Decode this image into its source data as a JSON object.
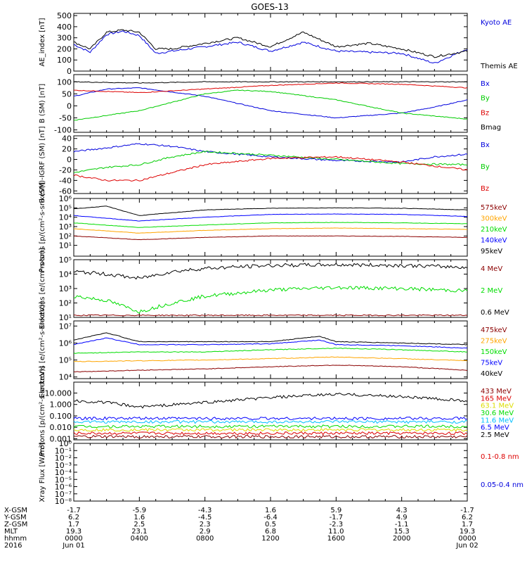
{
  "title": "GOES-13",
  "colors": {
    "black": "#000000",
    "blue": "#0000dd",
    "red": "#dd0000",
    "green": "#00dd00",
    "darkred": "#8b0000",
    "orange": "#ffa500",
    "navy": "#0000ff",
    "cyan": "#00bfff",
    "yellow": "#dddd00",
    "purple": "#8800cc"
  },
  "chart_data": [
    {
      "type": "line",
      "id": "ae",
      "ylabel": "AE_index [nT]",
      "ylim": [
        0,
        520
      ],
      "yticks": [
        "0",
        "100",
        "200",
        "300",
        "400",
        "500"
      ],
      "series": [
        {
          "name": "Kyoto AE",
          "color": "#0000dd",
          "x": [
            0,
            1,
            2,
            3,
            4,
            5,
            6,
            8,
            10,
            12,
            14,
            16,
            18,
            20,
            22,
            24
          ],
          "values": [
            240,
            170,
            330,
            360,
            320,
            160,
            180,
            220,
            260,
            180,
            260,
            180,
            170,
            160,
            70,
            200
          ]
        },
        {
          "name": "Themis AE",
          "color": "#000000",
          "x": [
            0,
            1,
            2,
            3,
            4,
            5,
            6,
            8,
            10,
            12,
            14,
            16,
            18,
            20,
            22,
            24
          ],
          "values": [
            260,
            200,
            350,
            370,
            350,
            200,
            200,
            250,
            300,
            220,
            350,
            220,
            250,
            200,
            130,
            180
          ]
        }
      ]
    },
    {
      "type": "line",
      "id": "b",
      "ylabel": "B (SM) [nT]",
      "ylim": [
        -110,
        130
      ],
      "yticks": [
        "-100",
        "-50",
        "0",
        "50",
        "100"
      ],
      "series": [
        {
          "name": "Bx",
          "color": "#0000dd",
          "x": [
            0,
            2,
            4,
            8,
            12,
            16,
            20,
            22,
            24
          ],
          "values": [
            40,
            70,
            75,
            40,
            -20,
            -50,
            -30,
            -5,
            25
          ]
        },
        {
          "name": "By",
          "color": "#00cc00",
          "x": [
            0,
            4,
            8,
            10,
            12,
            16,
            20,
            24
          ],
          "values": [
            -60,
            -20,
            50,
            65,
            60,
            25,
            -30,
            -55
          ]
        },
        {
          "name": "Bz",
          "color": "#dd0000",
          "x": [
            0,
            4,
            8,
            12,
            16,
            20,
            24
          ],
          "values": [
            65,
            55,
            70,
            85,
            95,
            90,
            75
          ]
        },
        {
          "name": "Bmag",
          "color": "#000000",
          "x": [
            0,
            4,
            8,
            12,
            16,
            20,
            24
          ],
          "values": [
            100,
            95,
            100,
            100,
            100,
            100,
            100
          ]
        }
      ]
    },
    {
      "type": "line",
      "id": "bd",
      "ylabel": "B (SM)-IGRF (SM) [nT]",
      "ylim": [
        -65,
        45
      ],
      "yticks": [
        "-60",
        "-40",
        "-20",
        "0",
        "20",
        "40"
      ],
      "series": [
        {
          "name": "Bx",
          "color": "#0000dd",
          "x": [
            0,
            2,
            4,
            6,
            8,
            12,
            16,
            20,
            22,
            24
          ],
          "values": [
            15,
            22,
            30,
            25,
            15,
            5,
            -2,
            -5,
            5,
            10
          ]
        },
        {
          "name": "By",
          "color": "#00cc00",
          "x": [
            0,
            2,
            4,
            6,
            8,
            12,
            16,
            20,
            24
          ],
          "values": [
            -25,
            -15,
            -10,
            5,
            15,
            8,
            0,
            -8,
            -10
          ]
        },
        {
          "name": "Bz",
          "color": "#dd0000",
          "x": [
            0,
            2,
            4,
            6,
            8,
            12,
            16,
            20,
            24
          ],
          "values": [
            -30,
            -40,
            -40,
            -25,
            -10,
            2,
            5,
            -5,
            -20
          ]
        }
      ]
    },
    {
      "type": "line",
      "id": "p1",
      "ylabel": "Protons [p/(cm²-s-sr-keV)]",
      "log": true,
      "ylim": [
        0.7,
        1000000
      ],
      "yticks": [
        "10¹",
        "10²",
        "10³",
        "10⁴",
        "10⁵",
        "10⁶"
      ],
      "series": [
        {
          "name": "575keV",
          "color": "#8b0000",
          "x": [
            0,
            4,
            8,
            12,
            16,
            20,
            24
          ],
          "values": [
            100,
            40,
            70,
            100,
            100,
            90,
            70
          ]
        },
        {
          "name": "300keV",
          "color": "#ffa500",
          "x": [
            0,
            4,
            8,
            12,
            16,
            20,
            24
          ],
          "values": [
            600,
            200,
            400,
            600,
            700,
            600,
            500
          ]
        },
        {
          "name": "210keV",
          "color": "#00dd00",
          "x": [
            0,
            4,
            8,
            12,
            16,
            20,
            24
          ],
          "values": [
            2500,
            800,
            1500,
            2500,
            2800,
            2500,
            2000
          ]
        },
        {
          "name": "140keV",
          "color": "#0000ff",
          "x": [
            0,
            4,
            8,
            12,
            16,
            20,
            24
          ],
          "values": [
            15000,
            4000,
            10000,
            20000,
            22000,
            20000,
            12000
          ]
        },
        {
          "name": "95keV",
          "color": "#000000",
          "x": [
            0,
            2,
            4,
            8,
            12,
            16,
            20,
            24
          ],
          "values": [
            80000,
            150000,
            15000,
            60000,
            90000,
            100000,
            90000,
            60000
          ]
        }
      ]
    },
    {
      "type": "line",
      "id": "e1",
      "ylabel": "Electrons [e/(cm²-s-sr)]",
      "log": true,
      "ylim": [
        10,
        100000
      ],
      "yticks": [
        "10¹",
        "10²",
        "10³",
        "10⁴",
        "10⁵"
      ],
      "series": [
        {
          "name": "4 MeV",
          "color": "#8b0000",
          "x": [
            0,
            24
          ],
          "values": [
            14,
            14
          ]
        },
        {
          "name": "2 MeV",
          "color": "#00dd00",
          "x": [
            0,
            2,
            4,
            6,
            8,
            12,
            16,
            20,
            24
          ],
          "values": [
            300,
            150,
            25,
            100,
            300,
            800,
            1200,
            1000,
            700
          ]
        },
        {
          "name": "0.6 MeV",
          "color": "#000000",
          "x": [
            0,
            2,
            4,
            6,
            8,
            12,
            16,
            20,
            24
          ],
          "values": [
            15000,
            10000,
            5000,
            15000,
            25000,
            40000,
            45000,
            40000,
            30000
          ]
        }
      ]
    },
    {
      "type": "line",
      "id": "e2",
      "ylabel": "Electrons [e/(cm²-s-sr-keV)]",
      "log": true,
      "ylim": [
        8000,
        20000000
      ],
      "yticks": [
        "10⁴",
        "10⁵",
        "10⁶",
        "10⁷"
      ],
      "series": [
        {
          "name": "475keV",
          "color": "#8b0000",
          "x": [
            0,
            4,
            8,
            12,
            16,
            20,
            24
          ],
          "values": [
            20000,
            25000,
            30000,
            40000,
            50000,
            40000,
            25000
          ]
        },
        {
          "name": "275keV",
          "color": "#ffa500",
          "x": [
            0,
            4,
            8,
            12,
            16,
            20,
            24
          ],
          "values": [
            80000,
            90000,
            100000,
            120000,
            150000,
            120000,
            90000
          ]
        },
        {
          "name": "150keV",
          "color": "#00dd00",
          "x": [
            0,
            4,
            8,
            12,
            16,
            20,
            24
          ],
          "values": [
            250000,
            300000,
            300000,
            400000,
            500000,
            400000,
            300000
          ]
        },
        {
          "name": "75keV",
          "color": "#0000ff",
          "x": [
            0,
            2,
            4,
            8,
            12,
            15,
            16,
            20,
            24
          ],
          "values": [
            800000,
            2000000,
            800000,
            800000,
            900000,
            1500000,
            800000,
            700000,
            500000
          ]
        },
        {
          "name": "40keV",
          "color": "#000000",
          "x": [
            0,
            2,
            4,
            8,
            12,
            15,
            16,
            20,
            24
          ],
          "values": [
            1500000,
            4000000,
            1200000,
            1200000,
            1200000,
            2500000,
            1200000,
            1000000,
            800000
          ]
        }
      ]
    },
    {
      "type": "line",
      "id": "p2",
      "ylabel": "Protons [p/(cm²-s-sr-keV)]",
      "log": true,
      "ylim": [
        0.0008,
        90
      ],
      "yticks": [
        "0.001",
        "0.010",
        "0.100",
        "1.000",
        "10.000"
      ],
      "series": [
        {
          "name": "433 MeV",
          "color": "#8b0000",
          "x": [
            0,
            24
          ],
          "values": [
            0.0015,
            0.0015
          ]
        },
        {
          "name": "165 MeV",
          "color": "#dd0000",
          "x": [
            0,
            24
          ],
          "values": [
            0.003,
            0.003
          ]
        },
        {
          "name": "63.1 MeV",
          "color": "#dddd00",
          "x": [
            0,
            24
          ],
          "values": [
            0.006,
            0.006
          ]
        },
        {
          "name": "30.6 MeV",
          "color": "#00dd00",
          "x": [
            0,
            24
          ],
          "values": [
            0.012,
            0.012
          ]
        },
        {
          "name": "11.6 MeV",
          "color": "#00bfff",
          "x": [
            0,
            24
          ],
          "values": [
            0.03,
            0.03
          ]
        },
        {
          "name": "6.5 MeV",
          "color": "#0000ff",
          "x": [
            0,
            24
          ],
          "values": [
            0.06,
            0.06
          ]
        },
        {
          "name": "2.5 MeV",
          "color": "#000000",
          "x": [
            0,
            2,
            4,
            8,
            12,
            16,
            20,
            24
          ],
          "values": [
            2,
            1.5,
            0.6,
            1.5,
            4,
            8,
            5,
            2
          ]
        }
      ]
    },
    {
      "type": "line",
      "id": "xr",
      "ylabel": "Xray Flux [W/m²]",
      "log": true,
      "ylim": [
        1e-08,
        1
      ],
      "yticks": [
        "10⁻⁸",
        "10⁻⁷",
        "10⁻⁶",
        "10⁻⁵",
        "10⁻⁴",
        "10⁻³",
        "10⁻²",
        "10⁻¹",
        "10⁰"
      ],
      "series": [
        {
          "name": "0.1-0.8 nm",
          "color": "#dd0000",
          "x": [],
          "values": []
        },
        {
          "name": "0.05-0.4 nm",
          "color": "#0000dd",
          "x": [],
          "values": []
        }
      ]
    }
  ],
  "orbit": {
    "labels": [
      "X-GSM",
      "Y-GSM",
      "Z-GSM",
      "MLT",
      "hhmm",
      "2016"
    ],
    "rows": [
      [
        "-1.7",
        "-5.9",
        "-4.3",
        "1.6",
        "5.9",
        "4.3",
        "-1.7"
      ],
      [
        "6.2",
        "1.6",
        "-4.5",
        "-6.4",
        "-1.7",
        "4.9",
        "6.2"
      ],
      [
        "1.7",
        "2.5",
        "2.3",
        "0.5",
        "-2.3",
        "-1.1",
        "1.7"
      ],
      [
        "19.3",
        "23.1",
        "2.9",
        "6.8",
        "11.0",
        "15.3",
        "19.3"
      ],
      [
        "0000",
        "0400",
        "0800",
        "1200",
        "1600",
        "2000",
        "0000"
      ],
      [
        "Jun 01",
        "",
        "",
        "",
        "",
        "",
        "Jun 02"
      ]
    ]
  }
}
